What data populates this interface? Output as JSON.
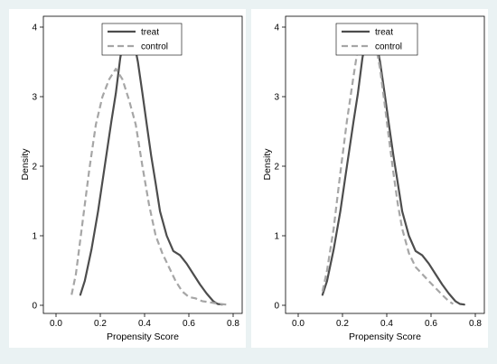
{
  "colors": {
    "background": "#eaf2f3",
    "panel": "#ffffff",
    "treat": "#4d4d4d",
    "control": "#a6a6a6"
  },
  "chart_data": [
    {
      "type": "line",
      "title": "",
      "xlabel": "Propensity Score",
      "ylabel": "Density",
      "xlim": [
        0.0,
        0.8
      ],
      "ylim": [
        0,
        4
      ],
      "xticks": [
        0.0,
        0.2,
        0.4,
        0.6,
        0.8
      ],
      "xtick_labels": [
        "0.0",
        "0.2",
        "0.4",
        "0.6",
        "0.8"
      ],
      "yticks": [
        0,
        1,
        2,
        3,
        4
      ],
      "ytick_labels": [
        "0",
        "1",
        "2",
        "3",
        "4"
      ],
      "grid": false,
      "legend": "top-center",
      "series": [
        {
          "name": "treat",
          "style": "solid",
          "color": "#4d4d4d",
          "x": [
            0.11,
            0.13,
            0.16,
            0.19,
            0.22,
            0.25,
            0.27,
            0.29,
            0.31,
            0.33,
            0.35,
            0.37,
            0.39,
            0.41,
            0.43,
            0.45,
            0.47,
            0.5,
            0.53,
            0.56,
            0.59,
            0.62,
            0.65,
            0.68,
            0.71,
            0.73,
            0.75
          ],
          "y": [
            0.15,
            0.35,
            0.8,
            1.35,
            2.0,
            2.65,
            3.05,
            3.55,
            3.9,
            4.0,
            3.82,
            3.5,
            3.05,
            2.6,
            2.15,
            1.75,
            1.35,
            1.0,
            0.78,
            0.72,
            0.6,
            0.45,
            0.3,
            0.17,
            0.06,
            0.02,
            0.01
          ]
        },
        {
          "name": "control",
          "style": "dashed",
          "color": "#a6a6a6",
          "x": [
            0.07,
            0.09,
            0.12,
            0.15,
            0.18,
            0.21,
            0.24,
            0.27,
            0.3,
            0.33,
            0.36,
            0.39,
            0.42,
            0.45,
            0.48,
            0.51,
            0.54,
            0.57,
            0.6,
            0.63,
            0.66,
            0.7,
            0.74,
            0.77
          ],
          "y": [
            0.15,
            0.45,
            1.2,
            1.95,
            2.6,
            3.0,
            3.25,
            3.4,
            3.25,
            2.95,
            2.6,
            2.0,
            1.45,
            1.0,
            0.75,
            0.55,
            0.35,
            0.2,
            0.12,
            0.1,
            0.06,
            0.04,
            0.02,
            0.01
          ]
        }
      ]
    },
    {
      "type": "line",
      "title": "",
      "xlabel": "Propensity Score",
      "ylabel": "Density",
      "xlim": [
        0.0,
        0.8
      ],
      "ylim": [
        0,
        4
      ],
      "xticks": [
        0.0,
        0.2,
        0.4,
        0.6,
        0.8
      ],
      "xtick_labels": [
        "0.0",
        "0.2",
        "0.4",
        "0.6",
        "0.8"
      ],
      "yticks": [
        0,
        1,
        2,
        3,
        4
      ],
      "ytick_labels": [
        "0",
        "1",
        "2",
        "3",
        "4"
      ],
      "grid": false,
      "legend": "top-center",
      "series": [
        {
          "name": "treat",
          "style": "solid",
          "color": "#4d4d4d",
          "x": [
            0.11,
            0.13,
            0.16,
            0.19,
            0.22,
            0.25,
            0.27,
            0.29,
            0.31,
            0.33,
            0.35,
            0.37,
            0.39,
            0.41,
            0.43,
            0.45,
            0.47,
            0.5,
            0.53,
            0.56,
            0.59,
            0.62,
            0.65,
            0.68,
            0.71,
            0.73,
            0.75
          ],
          "y": [
            0.15,
            0.35,
            0.8,
            1.35,
            2.0,
            2.65,
            3.05,
            3.55,
            3.9,
            4.0,
            3.82,
            3.5,
            3.05,
            2.6,
            2.15,
            1.75,
            1.35,
            1.0,
            0.78,
            0.72,
            0.6,
            0.45,
            0.3,
            0.17,
            0.06,
            0.02,
            0.01
          ]
        },
        {
          "name": "control",
          "style": "dashed",
          "color": "#a6a6a6",
          "x": [
            0.11,
            0.13,
            0.16,
            0.19,
            0.22,
            0.25,
            0.27,
            0.29,
            0.31,
            0.33,
            0.35,
            0.37,
            0.39,
            0.41,
            0.43,
            0.45,
            0.47,
            0.5,
            0.53,
            0.56,
            0.59,
            0.62,
            0.65,
            0.68,
            0.7
          ],
          "y": [
            0.2,
            0.5,
            1.1,
            1.9,
            2.65,
            3.3,
            3.7,
            3.95,
            4.0,
            3.95,
            3.75,
            3.4,
            2.9,
            2.4,
            1.9,
            1.45,
            1.1,
            0.75,
            0.55,
            0.45,
            0.35,
            0.25,
            0.15,
            0.06,
            0.02
          ]
        }
      ]
    }
  ]
}
